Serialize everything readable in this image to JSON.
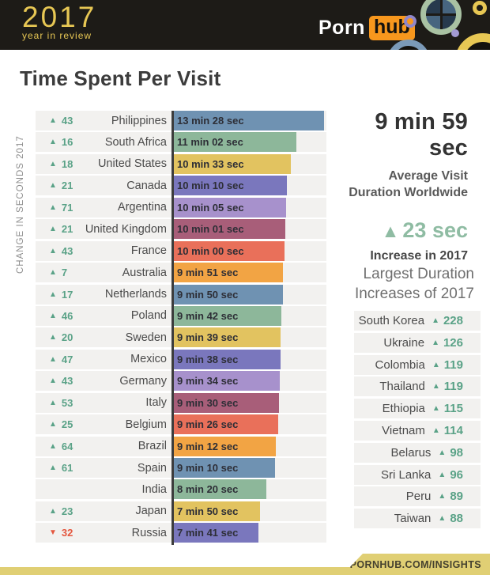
{
  "header": {
    "logo_year": "2017",
    "logo_tagline": "year in review",
    "brand_porn": "Porn",
    "brand_hub": "hub"
  },
  "title": "Time Spent Per Visit",
  "summary": {
    "value": "9 min 59 sec",
    "label": "Average Visit Duration Worldwide",
    "increase_arrow": "▲",
    "increase_value": "23 sec",
    "increase_label": "Increase in 2017"
  },
  "footer": {
    "url": "PORNHUB.COM/INSIGHTS"
  },
  "colors": {
    "header_bg": "#1d1b17",
    "gold": "#e7c754",
    "hub_orange": "#f7971d",
    "row_bg": "#f2f1ef",
    "up_green": "#5aa287",
    "down_red": "#e4573f",
    "accent_green": "#8fbca3",
    "footer_gold": "#e0cf74"
  },
  "chart_data": [
    {
      "type": "bar",
      "title": "Time Spent Per Visit",
      "orientation": "horizontal",
      "axis_label": "CHANGE IN SECONDS 2017",
      "value_unit": "seconds",
      "xlim": [
        0,
        820
      ],
      "bar_colors": [
        "#6f92b2",
        "#8db79a",
        "#e2c360",
        "#7a77bd",
        "#a791cc",
        "#a85e79",
        "#e9705a",
        "#f2a444"
      ],
      "rows": [
        {
          "country": "Philippines",
          "change": 43,
          "direction": "up",
          "duration": "13 min 28 sec",
          "seconds": 808
        },
        {
          "country": "South Africa",
          "change": 16,
          "direction": "up",
          "duration": "11 min 02 sec",
          "seconds": 662
        },
        {
          "country": "United States",
          "change": 18,
          "direction": "up",
          "duration": "10 min 33 sec",
          "seconds": 633
        },
        {
          "country": "Canada",
          "change": 21,
          "direction": "up",
          "duration": "10 min 10 sec",
          "seconds": 610
        },
        {
          "country": "Argentina",
          "change": 71,
          "direction": "up",
          "duration": "10 min 05 sec",
          "seconds": 605
        },
        {
          "country": "United Kingdom",
          "change": 21,
          "direction": "up",
          "duration": "10 min 01 sec",
          "seconds": 601
        },
        {
          "country": "France",
          "change": 43,
          "direction": "up",
          "duration": "10 min 00 sec",
          "seconds": 600
        },
        {
          "country": "Australia",
          "change": 7,
          "direction": "up",
          "duration": "9 min 51 sec",
          "seconds": 591
        },
        {
          "country": "Netherlands",
          "change": 17,
          "direction": "up",
          "duration": "9 min 50 sec",
          "seconds": 590
        },
        {
          "country": "Poland",
          "change": 46,
          "direction": "up",
          "duration": "9 min 42 sec",
          "seconds": 582
        },
        {
          "country": "Sweden",
          "change": 20,
          "direction": "up",
          "duration": "9 min 39 sec",
          "seconds": 579
        },
        {
          "country": "Mexico",
          "change": 47,
          "direction": "up",
          "duration": "9 min 38 sec",
          "seconds": 578
        },
        {
          "country": "Germany",
          "change": 43,
          "direction": "up",
          "duration": "9 min 34 sec",
          "seconds": 574
        },
        {
          "country": "Italy",
          "change": 53,
          "direction": "up",
          "duration": "9 min 30 sec",
          "seconds": 570
        },
        {
          "country": "Belgium",
          "change": 25,
          "direction": "up",
          "duration": "9 min 26 sec",
          "seconds": 566
        },
        {
          "country": "Brazil",
          "change": 64,
          "direction": "up",
          "duration": "9 min 12 sec",
          "seconds": 552
        },
        {
          "country": "Spain",
          "change": 61,
          "direction": "up",
          "duration": "9 min 10 sec",
          "seconds": 550
        },
        {
          "country": "India",
          "change": null,
          "direction": null,
          "duration": "8 min 20 sec",
          "seconds": 500
        },
        {
          "country": "Japan",
          "change": 23,
          "direction": "up",
          "duration": "7 min 50 sec",
          "seconds": 470
        },
        {
          "country": "Russia",
          "change": 32,
          "direction": "down",
          "duration": "7 min 41 sec",
          "seconds": 461
        }
      ]
    },
    {
      "type": "table",
      "title": "Largest Duration Increases of 2017",
      "value_unit": "seconds increase",
      "rows": [
        {
          "country": "South Korea",
          "change": 228,
          "direction": "up"
        },
        {
          "country": "Ukraine",
          "change": 126,
          "direction": "up"
        },
        {
          "country": "Colombia",
          "change": 119,
          "direction": "up"
        },
        {
          "country": "Thailand",
          "change": 119,
          "direction": "up"
        },
        {
          "country": "Ethiopia",
          "change": 115,
          "direction": "up"
        },
        {
          "country": "Vietnam",
          "change": 114,
          "direction": "up"
        },
        {
          "country": "Belarus",
          "change": 98,
          "direction": "up"
        },
        {
          "country": "Sri Lanka",
          "change": 96,
          "direction": "up"
        },
        {
          "country": "Peru",
          "change": 89,
          "direction": "up"
        },
        {
          "country": "Taiwan",
          "change": 88,
          "direction": "up"
        }
      ]
    }
  ]
}
